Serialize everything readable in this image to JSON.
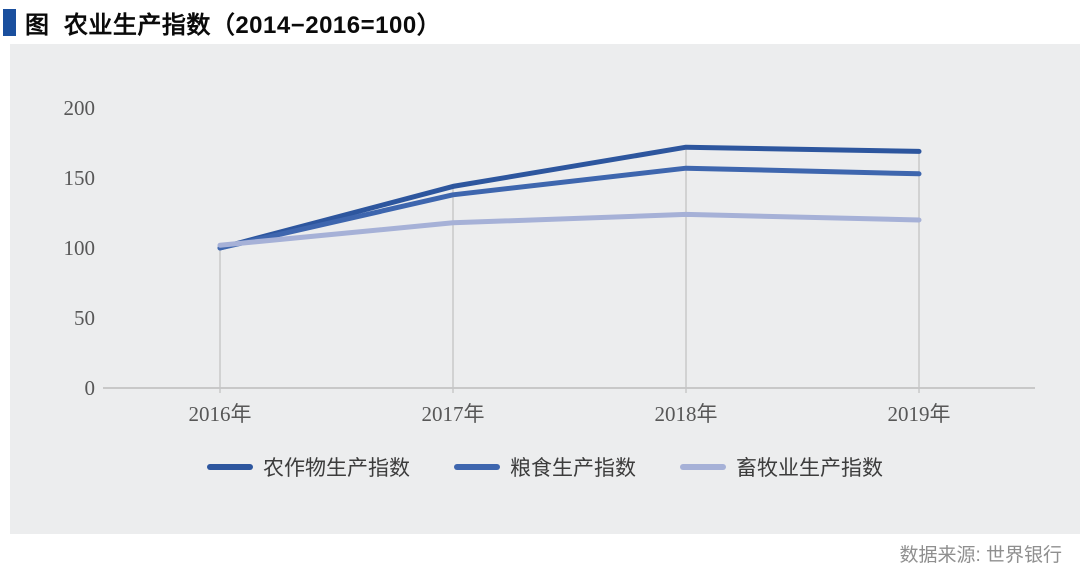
{
  "header": {
    "title": "图  农业生产指数（2014−2016=100）",
    "marker_color": "#1a4f9e"
  },
  "chart_data": {
    "type": "line",
    "title": "农业生产指数（2014−2016=100）",
    "categories": [
      "2016年",
      "2017年",
      "2018年",
      "2019年"
    ],
    "series": [
      {
        "name": "农作物生产指数",
        "color": "#2d569e",
        "values": [
          100,
          144,
          172,
          169
        ]
      },
      {
        "name": "粮食生产指数",
        "color": "#3e66ae",
        "values": [
          100,
          138,
          157,
          153
        ]
      },
      {
        "name": "畜牧业生产指数",
        "color": "#a6b1d7",
        "values": [
          102,
          118,
          124,
          120
        ]
      }
    ],
    "ylim": [
      0,
      200
    ],
    "yticks": [
      0,
      50,
      100,
      150,
      200
    ],
    "grid": "vertical-droplines-per-category",
    "legend_position": "bottom",
    "panel_background": "#ecedee",
    "axis_color": "#bcbcbc",
    "dropline_color": "#c6c6c6",
    "tick_label_color": "#575757"
  },
  "footer": {
    "source": "数据来源: 世界银行"
  }
}
